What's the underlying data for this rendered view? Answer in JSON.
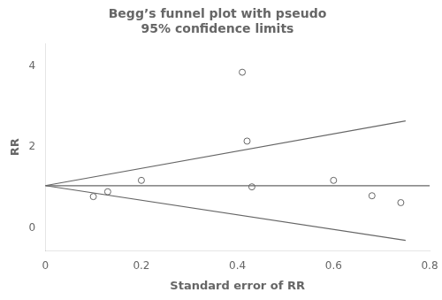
{
  "chart_data": {
    "type": "scatter",
    "title": "Begg’s funnel plot with pseudo\n95% confidence limits",
    "xlabel": "Standard error of RR",
    "ylabel": "RR",
    "xlim": [
      0,
      0.8
    ],
    "ylim": [
      -0.55,
      4.55
    ],
    "xticks": [
      0,
      0.2,
      0.4,
      0.6,
      0.8
    ],
    "yticks": [
      0,
      2,
      4
    ],
    "grid": false,
    "series": [
      {
        "type": "line",
        "color": "#666666",
        "x": [
          0.0,
          0.75
        ],
        "values": [
          1.05,
          2.65
        ]
      },
      {
        "type": "line",
        "color": "#666666",
        "x": [
          0.0,
          0.75
        ],
        "values": [
          1.05,
          -0.3
        ]
      },
      {
        "type": "line",
        "color": "#666666",
        "x": [
          0.0,
          0.8
        ],
        "values": [
          1.05,
          1.05
        ]
      },
      {
        "type": "scatter",
        "color": "#666666",
        "marker": "circle",
        "x": [
          0.1,
          0.13,
          0.2,
          0.41,
          0.42,
          0.43,
          0.6,
          0.68,
          0.74
        ],
        "values": [
          0.78,
          0.9,
          1.18,
          3.85,
          2.15,
          1.02,
          1.18,
          0.8,
          0.63
        ]
      }
    ]
  }
}
